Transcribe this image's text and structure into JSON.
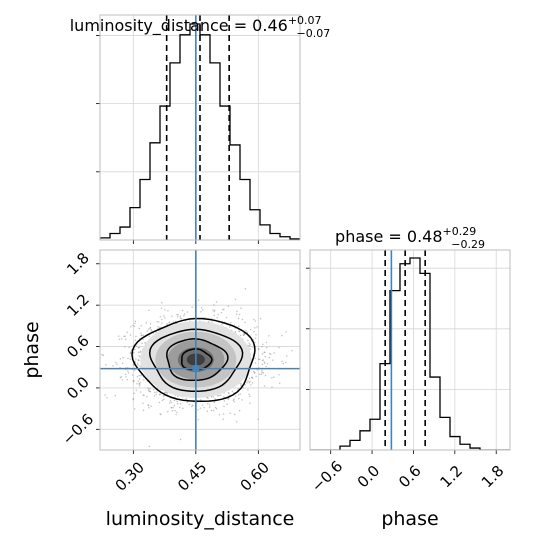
{
  "chart_data": {
    "type": "corner",
    "parameters": [
      "luminosity_distance",
      "phase"
    ],
    "truth_color": "#4682b4",
    "truths": {
      "luminosity_distance": 0.45,
      "phase": 0.28
    },
    "panels": [
      {
        "id": "hist-luminosity_distance",
        "type": "histogram",
        "title_prefix": "luminosity_distance = 0.46",
        "title_sup": "+0.07",
        "title_sub": "−0.07",
        "xlim": [
          0.22,
          0.7
        ],
        "bin_edges": [
          0.22,
          0.244,
          0.268,
          0.292,
          0.316,
          0.34,
          0.364,
          0.388,
          0.412,
          0.436,
          0.46,
          0.484,
          0.508,
          0.532,
          0.556,
          0.58,
          0.604,
          0.628,
          0.652,
          0.676,
          0.7
        ],
        "counts": [
          0.01,
          0.03,
          0.06,
          0.15,
          0.28,
          0.45,
          0.62,
          0.82,
          0.95,
          1.0,
          0.95,
          0.82,
          0.62,
          0.44,
          0.28,
          0.14,
          0.07,
          0.03,
          0.015,
          0.005
        ],
        "quantiles": [
          0.38,
          0.46,
          0.53
        ],
        "truth": 0.45
      },
      {
        "id": "hist-phase",
        "type": "histogram",
        "title_prefix": "phase = 0.48",
        "title_sup": "+0.29",
        "title_sub": "−0.29",
        "xlim": [
          -0.9,
          2.0
        ],
        "bin_edges": [
          -0.9,
          -0.755,
          -0.61,
          -0.465,
          -0.32,
          -0.175,
          -0.03,
          0.115,
          0.26,
          0.405,
          0.55,
          0.695,
          0.84,
          0.985,
          1.13,
          1.275,
          1.42,
          1.565,
          1.71,
          1.855,
          2.0
        ],
        "counts": [
          0,
          0,
          0,
          0.02,
          0.05,
          0.1,
          0.16,
          0.45,
          0.83,
          0.97,
          1.0,
          0.92,
          0.38,
          0.17,
          0.07,
          0.03,
          0.01,
          0,
          0,
          0
        ],
        "quantiles": [
          0.19,
          0.48,
          0.77
        ],
        "truth": 0.28,
        "xticks": [
          "−0.6",
          "0.0",
          "0.6",
          "1.2",
          "1.8"
        ],
        "xtick_values": [
          -0.6,
          0.0,
          0.6,
          1.2,
          1.8
        ],
        "xlabel": "phase"
      },
      {
        "id": "scatter-density",
        "type": "scatter",
        "xlim": [
          0.22,
          0.7
        ],
        "ylim": [
          -0.9,
          2.0
        ],
        "center": [
          0.45,
          0.41
        ],
        "spread": [
          0.072,
          0.3
        ],
        "xticks": [
          "0.30",
          "0.45",
          "0.60"
        ],
        "xtick_values": [
          0.3,
          0.45,
          0.6
        ],
        "yticks": [
          "−0.6",
          "0.0",
          "0.6",
          "1.2",
          "1.8"
        ],
        "ytick_values": [
          -0.6,
          0.0,
          0.6,
          1.2,
          1.8
        ],
        "xlabel": "luminosity_distance",
        "ylabel": "phase",
        "contour_levels_sigma": [
          0.5,
          1.0,
          1.5,
          2.0
        ]
      }
    ]
  }
}
